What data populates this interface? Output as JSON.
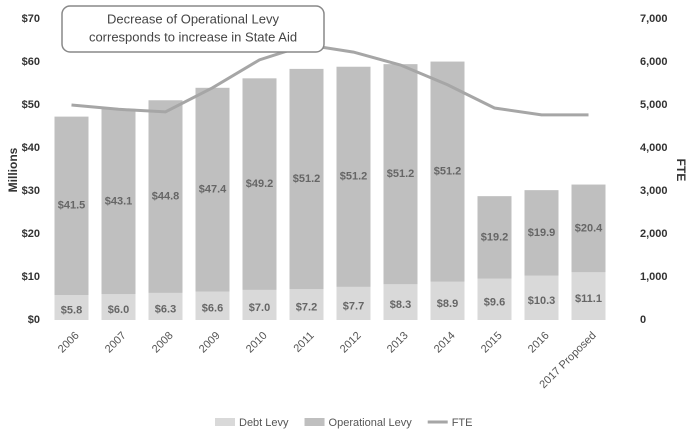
{
  "chart_data": {
    "type": "stacked-bar-line",
    "annotation": [
      "Decrease of Operational Levy",
      "corresponds to increase in State Aid"
    ],
    "ylabel": "Millions",
    "y2label": "FTE",
    "categories": [
      "2006",
      "2007",
      "2008",
      "2009",
      "2010",
      "2011",
      "2012",
      "2013",
      "2014",
      "2015",
      "2016",
      "2017 Proposed"
    ],
    "series": [
      {
        "name": "Debt Levy",
        "color": "#d9d9d9",
        "type": "bar",
        "values": [
          5.8,
          6.0,
          6.3,
          6.6,
          7.0,
          7.2,
          7.7,
          8.3,
          8.9,
          9.6,
          10.3,
          11.1
        ],
        "value_labels": [
          "$5.8",
          "$6.0",
          "$6.3",
          "$6.6",
          "$7.0",
          "$7.2",
          "$7.7",
          "$8.3",
          "$8.9",
          "$9.6",
          "$10.3",
          "$11.1"
        ]
      },
      {
        "name": "Operational Levy",
        "color": "#bfbfbf",
        "type": "bar",
        "values": [
          41.5,
          43.1,
          44.8,
          47.4,
          49.2,
          51.2,
          51.2,
          51.2,
          51.2,
          19.2,
          19.9,
          20.4
        ],
        "value_labels": [
          "$41.5",
          "$43.1",
          "$44.8",
          "$47.4",
          "$49.2",
          "$51.2",
          "$51.2",
          "$51.2",
          "$51.2",
          "$19.2",
          "$19.9",
          "$20.4"
        ]
      },
      {
        "name": "FTE",
        "color": "#a6a6a6",
        "type": "line",
        "axis": "y2",
        "values": [
          5000,
          4900,
          4840,
          5400,
          6050,
          6400,
          6230,
          5930,
          5470,
          4930,
          4770,
          4770
        ]
      }
    ],
    "ylim": [
      0,
      70
    ],
    "yticks": [
      {
        "value": 0,
        "label": "$0"
      },
      {
        "value": 10,
        "label": "$10"
      },
      {
        "value": 20,
        "label": "$20"
      },
      {
        "value": 30,
        "label": "$30"
      },
      {
        "value": 40,
        "label": "$40"
      },
      {
        "value": 50,
        "label": "$50"
      },
      {
        "value": 60,
        "label": "$60"
      },
      {
        "value": 70,
        "label": "$70"
      }
    ],
    "y2lim": [
      0,
      7000
    ],
    "y2ticks": [
      0,
      {
        "value": 1000,
        "label": "1,000"
      },
      {
        "value": 2000,
        "label": "2,000"
      },
      {
        "value": 3000,
        "label": "3,000"
      },
      {
        "value": 4000,
        "label": "4,000"
      },
      {
        "value": 5000,
        "label": "5,000"
      },
      {
        "value": 6000,
        "label": "6,000"
      },
      {
        "value": 7000,
        "label": "7,000"
      }
    ],
    "legend": "bottom"
  }
}
